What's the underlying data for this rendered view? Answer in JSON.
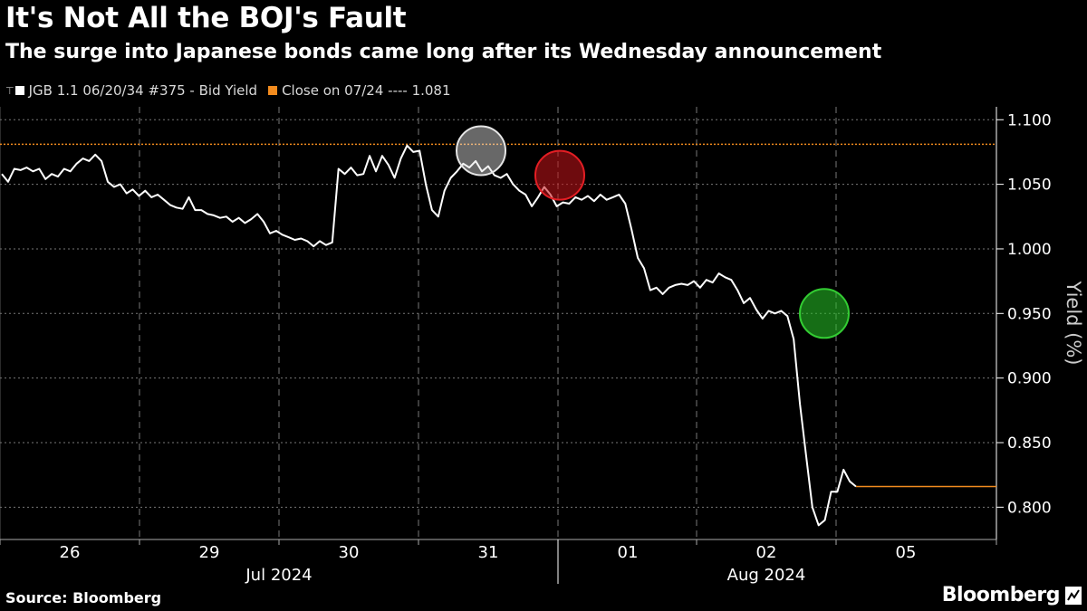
{
  "header": {
    "title": "It's Not All the BOJ's Fault",
    "subtitle": "The surge into Japanese bonds came long after its Wednesday announcement"
  },
  "legend": {
    "series_label": "JGB 1.1 06/20/34 #375 - Bid Yield",
    "close_label": "Close on 07/24 ---- 1.081"
  },
  "footer": {
    "source": "Source: Bloomberg",
    "brand": "Bloomberg",
    "brand_icon": "bloomberg-chart-icon"
  },
  "colors": {
    "background": "#000000",
    "line": "#ffffff",
    "close_line": "#f28b1e",
    "marker_white": "#e6e6e6",
    "marker_red": "#e31e24",
    "marker_green": "#33cc33"
  },
  "chart_data": {
    "type": "line",
    "ylabel": "Yield (%)",
    "ylim": [
      0.775,
      1.11
    ],
    "yticks": [
      0.8,
      0.85,
      0.9,
      0.95,
      1.0,
      1.05,
      1.1
    ],
    "grid": true,
    "x_day_labels": [
      "26",
      "29",
      "30",
      "31",
      "01",
      "02",
      "05"
    ],
    "x_month_labels": [
      "Jul 2024",
      "Aug 2024"
    ],
    "close_reference": {
      "label": "Close on 07/24",
      "value": 1.081
    },
    "series": [
      {
        "name": "JGB 1.1 06/20/34 #375 - Bid Yield",
        "points": [
          [
            "Jul 26 open",
            1.058
          ],
          [
            "Jul 26",
            1.052
          ],
          [
            "Jul 26",
            1.062
          ],
          [
            "Jul 26",
            1.061
          ],
          [
            "Jul 26",
            1.063
          ],
          [
            "Jul 26",
            1.06
          ],
          [
            "Jul 26",
            1.062
          ],
          [
            "Jul 26",
            1.054
          ],
          [
            "Jul 26",
            1.058
          ],
          [
            "Jul 26",
            1.056
          ],
          [
            "Jul 26",
            1.062
          ],
          [
            "Jul 26",
            1.06
          ],
          [
            "Jul 26",
            1.066
          ],
          [
            "Jul 26",
            1.07
          ],
          [
            "Jul 26",
            1.068
          ],
          [
            "Jul 26",
            1.073
          ],
          [
            "Jul 26 close",
            1.068
          ],
          [
            "Jul 29 open",
            1.052
          ],
          [
            "Jul 29",
            1.048
          ],
          [
            "Jul 29",
            1.05
          ],
          [
            "Jul 29",
            1.043
          ],
          [
            "Jul 29",
            1.046
          ],
          [
            "Jul 29",
            1.041
          ],
          [
            "Jul 29",
            1.045
          ],
          [
            "Jul 29",
            1.04
          ],
          [
            "Jul 29",
            1.042
          ],
          [
            "Jul 29",
            1.038
          ],
          [
            "Jul 29",
            1.034
          ],
          [
            "Jul 29",
            1.032
          ],
          [
            "Jul 29",
            1.031
          ],
          [
            "Jul 29",
            1.04
          ],
          [
            "Jul 29",
            1.03
          ],
          [
            "Jul 29 close",
            1.03
          ],
          [
            "Jul 30 open",
            1.027
          ],
          [
            "Jul 30",
            1.026
          ],
          [
            "Jul 30",
            1.024
          ],
          [
            "Jul 30",
            1.025
          ],
          [
            "Jul 30",
            1.021
          ],
          [
            "Jul 30",
            1.024
          ],
          [
            "Jul 30",
            1.02
          ],
          [
            "Jul 30",
            1.023
          ],
          [
            "Jul 30",
            1.027
          ],
          [
            "Jul 30",
            1.021
          ],
          [
            "Jul 30",
            1.012
          ],
          [
            "Jul 30",
            1.014
          ],
          [
            "Jul 30",
            1.011
          ],
          [
            "Jul 30",
            1.009
          ],
          [
            "Jul 30",
            1.007
          ],
          [
            "Jul 30",
            1.008
          ],
          [
            "Jul 30",
            1.006
          ],
          [
            "Jul 30",
            1.002
          ],
          [
            "Jul 30",
            1.006
          ],
          [
            "Jul 30",
            1.003
          ],
          [
            "Jul 30 close",
            1.005
          ],
          [
            "Jul 31 open",
            1.062
          ],
          [
            "Jul 31",
            1.058
          ],
          [
            "Jul 31",
            1.063
          ],
          [
            "Jul 31",
            1.057
          ],
          [
            "Jul 31",
            1.058
          ],
          [
            "Jul 31",
            1.072
          ],
          [
            "Jul 31",
            1.06
          ],
          [
            "Jul 31",
            1.072
          ],
          [
            "Jul 31",
            1.065
          ],
          [
            "Jul 31",
            1.055
          ],
          [
            "Jul 31",
            1.07
          ],
          [
            "Jul 31",
            1.08
          ],
          [
            "Jul 31",
            1.075
          ],
          [
            "Jul 31",
            1.076
          ],
          [
            "Jul 31",
            1.05
          ],
          [
            "Jul 31",
            1.03
          ],
          [
            "Jul 31",
            1.025
          ],
          [
            "Jul 31",
            1.045
          ],
          [
            "Jul 31",
            1.055
          ],
          [
            "Jul 31",
            1.06
          ],
          [
            "Jul 31",
            1.066
          ],
          [
            "Jul 31",
            1.063
          ],
          [
            "Jul 31",
            1.068
          ],
          [
            "Jul 31",
            1.06
          ],
          [
            "Jul 31",
            1.064
          ],
          [
            "Jul 31",
            1.057
          ],
          [
            "Jul 31",
            1.055
          ],
          [
            "Jul 31",
            1.058
          ],
          [
            "Jul 31",
            1.05
          ],
          [
            "Jul 31 close",
            1.045
          ],
          [
            "Aug 01 open",
            1.042
          ],
          [
            "Aug 01",
            1.033
          ],
          [
            "Aug 01",
            1.04
          ],
          [
            "Aug 01",
            1.048
          ],
          [
            "Aug 01",
            1.042
          ],
          [
            "Aug 01",
            1.033
          ],
          [
            "Aug 01",
            1.036
          ],
          [
            "Aug 01",
            1.035
          ],
          [
            "Aug 01",
            1.04
          ],
          [
            "Aug 01",
            1.038
          ],
          [
            "Aug 01",
            1.041
          ],
          [
            "Aug 01",
            1.037
          ],
          [
            "Aug 01",
            1.042
          ],
          [
            "Aug 01",
            1.038
          ],
          [
            "Aug 01",
            1.04
          ],
          [
            "Aug 01",
            1.042
          ],
          [
            "Aug 01",
            1.035
          ],
          [
            "Aug 01",
            1.015
          ],
          [
            "Aug 01",
            0.993
          ],
          [
            "Aug 01",
            0.985
          ],
          [
            "Aug 01 close",
            0.968
          ],
          [
            "Aug 02 open",
            0.97
          ],
          [
            "Aug 02",
            0.965
          ],
          [
            "Aug 02",
            0.97
          ],
          [
            "Aug 02",
            0.972
          ],
          [
            "Aug 02",
            0.973
          ],
          [
            "Aug 02",
            0.972
          ],
          [
            "Aug 02",
            0.975
          ],
          [
            "Aug 02",
            0.97
          ],
          [
            "Aug 02",
            0.976
          ],
          [
            "Aug 02",
            0.974
          ],
          [
            "Aug 02",
            0.981
          ],
          [
            "Aug 02",
            0.978
          ],
          [
            "Aug 02",
            0.976
          ],
          [
            "Aug 02",
            0.968
          ],
          [
            "Aug 02",
            0.958
          ],
          [
            "Aug 02",
            0.962
          ],
          [
            "Aug 02",
            0.953
          ],
          [
            "Aug 02",
            0.946
          ],
          [
            "Aug 02",
            0.952
          ],
          [
            "Aug 02",
            0.95
          ],
          [
            "Aug 02",
            0.952
          ],
          [
            "Aug 02",
            0.948
          ],
          [
            "Aug 02",
            0.93
          ],
          [
            "Aug 02",
            0.88
          ],
          [
            "Aug 02",
            0.84
          ],
          [
            "Aug 02",
            0.8
          ],
          [
            "Aug 02",
            0.786
          ],
          [
            "Aug 02",
            0.79
          ],
          [
            "Aug 02",
            0.812
          ],
          [
            "Aug 02",
            0.812
          ],
          [
            "Aug 02",
            0.829
          ],
          [
            "Aug 02",
            0.82
          ],
          [
            "Aug 02",
            0.816
          ],
          [
            "Aug 05",
            0.816
          ],
          [
            "Aug 05 close",
            0.816
          ]
        ]
      }
    ],
    "annotations": [
      {
        "label": "white circle",
        "near": "Jul 31",
        "value": 1.076,
        "color": "#e6e6e6"
      },
      {
        "label": "red circle",
        "near": "Aug 01",
        "value": 1.057,
        "color": "#e31e24"
      },
      {
        "label": "green circle",
        "near": "Aug 02",
        "value": 0.95,
        "color": "#33cc33"
      }
    ]
  }
}
